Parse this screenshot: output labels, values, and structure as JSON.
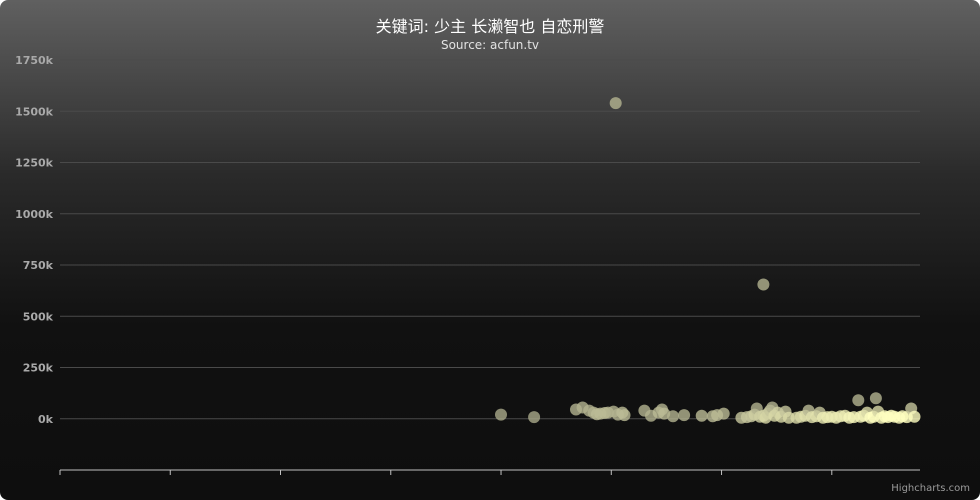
{
  "chart": {
    "title": "关键词: 少主 长濑智也 自恋刑警",
    "subtitle": "Source: acfun.tv",
    "credits": "Highcharts.com"
  },
  "chart_data": {
    "type": "scatter",
    "title": "关键词: 少主 长濑智也 自恋刑警",
    "subtitle": "Source: acfun.tv",
    "xlabel": "",
    "ylabel": "",
    "xlim": [
      0,
      78
    ],
    "ylim": [
      -250000,
      1750000
    ],
    "yticks": [
      0,
      250000,
      500000,
      750000,
      1000000,
      1250000,
      1500000,
      1750000
    ],
    "ytick_labels": [
      "0k",
      "250k",
      "500k",
      "750k",
      "1000k",
      "1250k",
      "1500k",
      "1750k"
    ],
    "xticks": [
      0,
      10,
      20,
      30,
      40,
      50,
      60,
      70
    ],
    "grid": true,
    "legend": "none",
    "colors": {
      "point_old": "#a9a98a",
      "point_new": "#ffffc0",
      "grid": "#4a4a4a",
      "axis": "#c0c0c0"
    },
    "points": [
      [
        40.0,
        20000,
        0.55
      ],
      [
        43.0,
        8000,
        0.55
      ],
      [
        46.8,
        45000,
        0.6
      ],
      [
        47.4,
        55000,
        0.6
      ],
      [
        48.0,
        40000,
        0.6
      ],
      [
        48.4,
        30000,
        0.6
      ],
      [
        48.7,
        22000,
        0.65
      ],
      [
        49.0,
        25000,
        0.65
      ],
      [
        49.4,
        28000,
        0.65
      ],
      [
        49.7,
        30000,
        0.65
      ],
      [
        50.2,
        35000,
        0.6
      ],
      [
        50.6,
        20000,
        0.6
      ],
      [
        51.0,
        30000,
        0.65
      ],
      [
        51.2,
        18000,
        0.65
      ],
      [
        50.4,
        1540000,
        0.6
      ],
      [
        53.0,
        40000,
        0.6
      ],
      [
        53.6,
        15000,
        0.6
      ],
      [
        54.3,
        30000,
        0.65
      ],
      [
        54.6,
        45000,
        0.6
      ],
      [
        54.8,
        25000,
        0.65
      ],
      [
        55.6,
        12000,
        0.6
      ],
      [
        56.6,
        18000,
        0.6
      ],
      [
        58.2,
        15000,
        0.65
      ],
      [
        59.2,
        12000,
        0.65
      ],
      [
        59.6,
        18000,
        0.65
      ],
      [
        60.2,
        25000,
        0.65
      ],
      [
        61.8,
        5000,
        0.7
      ],
      [
        62.3,
        8000,
        0.7
      ],
      [
        62.7,
        12000,
        0.7
      ],
      [
        63.0,
        20000,
        0.75
      ],
      [
        63.2,
        50000,
        0.6
      ],
      [
        63.5,
        10000,
        0.75
      ],
      [
        63.8,
        15000,
        0.75
      ],
      [
        64.0,
        5000,
        0.8
      ],
      [
        64.2,
        25000,
        0.75
      ],
      [
        64.4,
        40000,
        0.7
      ],
      [
        64.6,
        55000,
        0.6
      ],
      [
        64.8,
        15000,
        0.8
      ],
      [
        65.1,
        30000,
        0.75
      ],
      [
        65.4,
        10000,
        0.8
      ],
      [
        65.8,
        35000,
        0.7
      ],
      [
        66.1,
        5000,
        0.8
      ],
      [
        63.8,
        655000,
        0.6
      ],
      [
        66.8,
        5000,
        0.8
      ],
      [
        67.2,
        10000,
        0.8
      ],
      [
        67.6,
        15000,
        0.85
      ],
      [
        67.9,
        40000,
        0.65
      ],
      [
        68.2,
        8000,
        0.85
      ],
      [
        68.6,
        12000,
        0.85
      ],
      [
        68.9,
        30000,
        0.7
      ],
      [
        69.2,
        5000,
        0.9
      ],
      [
        69.6,
        8000,
        0.9
      ],
      [
        70.0,
        10000,
        0.9
      ],
      [
        70.4,
        5000,
        0.9
      ],
      [
        70.8,
        12000,
        0.9
      ],
      [
        71.2,
        15000,
        0.9
      ],
      [
        71.6,
        5000,
        0.95
      ],
      [
        72.0,
        8000,
        0.95
      ],
      [
        72.4,
        90000,
        0.6
      ],
      [
        72.6,
        10000,
        0.95
      ],
      [
        72.9,
        15000,
        0.95
      ],
      [
        73.2,
        30000,
        0.8
      ],
      [
        73.5,
        5000,
        1.0
      ],
      [
        73.8,
        10000,
        1.0
      ],
      [
        74.0,
        100000,
        0.6
      ],
      [
        74.2,
        35000,
        0.8
      ],
      [
        74.5,
        5000,
        1.0
      ],
      [
        74.8,
        12000,
        1.0
      ],
      [
        75.1,
        8000,
        1.0
      ],
      [
        75.4,
        15000,
        1.0
      ],
      [
        75.7,
        10000,
        1.0
      ],
      [
        76.1,
        5000,
        1.0
      ],
      [
        76.4,
        12000,
        1.0
      ],
      [
        76.8,
        8000,
        1.0
      ],
      [
        77.2,
        50000,
        0.7
      ],
      [
        77.5,
        10000,
        1.0
      ]
    ]
  }
}
